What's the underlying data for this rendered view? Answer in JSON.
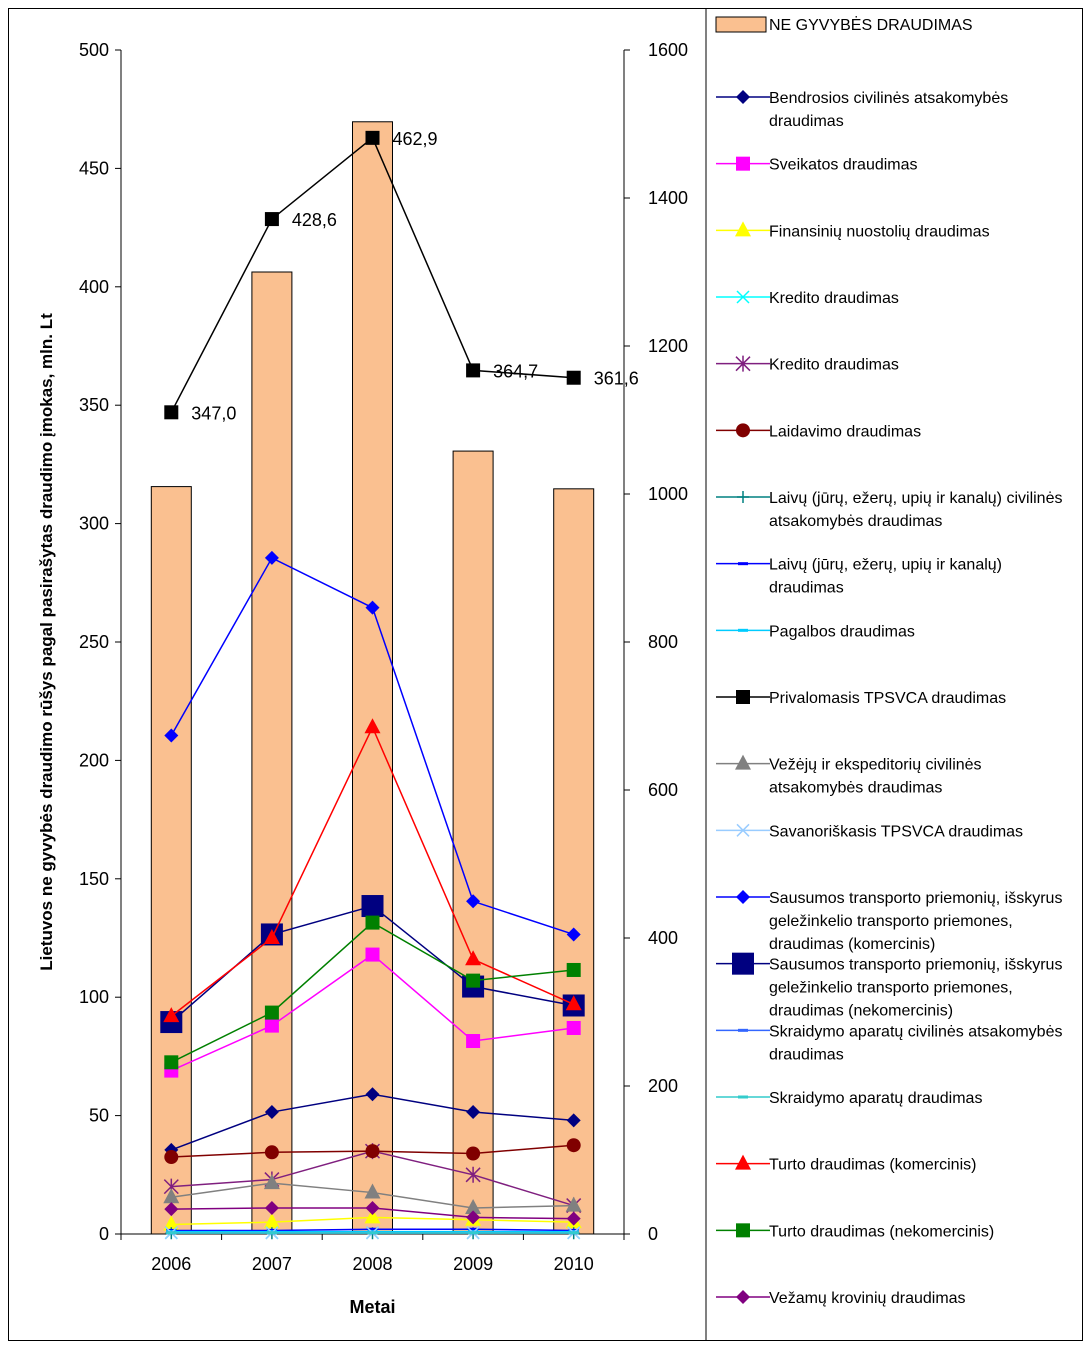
{
  "chart_data": {
    "type": "bar",
    "xlabel": "Metai",
    "ylabel": "Lietuvos ne gyvybės draudimo rūšys pagal pasirašytas draudimo įmokas, mln. Lt",
    "categories": [
      "2006",
      "2007",
      "2008",
      "2009",
      "2010"
    ],
    "ylim_left": [
      0,
      500
    ],
    "yticks_left": [
      0,
      50,
      100,
      150,
      200,
      250,
      300,
      350,
      400,
      450,
      500
    ],
    "ylim_right": [
      0,
      1600
    ],
    "yticks_right": [
      0,
      200,
      400,
      600,
      800,
      1000,
      1200,
      1400,
      1600
    ],
    "bar_series": {
      "name": "NE GYVYBĖS DRAUDIMAS",
      "axis": "right",
      "color": "#FAC090",
      "values": [
        1010,
        1300,
        1503,
        1058,
        1007
      ]
    },
    "line_series": [
      {
        "name": "Bendrosios civilinės atsakomybės draudimas",
        "color": "#000080",
        "marker": "diamond",
        "values": [
          35.5,
          51.5,
          59,
          51.5,
          48
        ]
      },
      {
        "name": "Sveikatos draudimas",
        "color": "#FF00FF",
        "marker": "square",
        "values": [
          69,
          88,
          118,
          81.5,
          87
        ]
      },
      {
        "name": "Finansinių nuostolių draudimas",
        "color": "#FFFF00",
        "marker": "triangle",
        "values": [
          4,
          5,
          7,
          6,
          5
        ]
      },
      {
        "name": "Kredito draudimas",
        "color": "#00FFFF",
        "marker": "x",
        "values": [
          0.5,
          0.5,
          0.5,
          0.5,
          0.5
        ]
      },
      {
        "name": "Kredito draudimas",
        "color": "#7F1F7F",
        "marker": "star",
        "values": [
          20,
          23,
          35,
          25,
          12
        ]
      },
      {
        "name": "Laidavimo draudimas",
        "color": "#800000",
        "marker": "circle",
        "values": [
          32.5,
          34.5,
          35,
          34,
          37.5
        ]
      },
      {
        "name": "Laivų (jūrų, ežerų, upių ir kanalų) civilinės atsakomybės draudimas",
        "color": "#008080",
        "marker": "plus",
        "values": [
          0.3,
          0.3,
          0.3,
          0.3,
          0.3
        ]
      },
      {
        "name": "Laivų (jūrų, ežerų, upių ir kanalų) draudimas",
        "color": "#0000FF",
        "marker": "dash",
        "values": [
          1.5,
          1.5,
          2,
          2,
          1.5
        ]
      },
      {
        "name": "Pagalbos draudimas",
        "color": "#00CCFF",
        "marker": "dash",
        "values": [
          1,
          1,
          1,
          1,
          1
        ]
      },
      {
        "name": "Privalomasis TPSVCA draudimas",
        "color": "#000000",
        "marker": "square",
        "values": [
          347.0,
          428.6,
          462.9,
          364.7,
          361.6
        ],
        "labels": [
          "347,0",
          "428,6",
          "462,9",
          "364,7",
          "361,6"
        ]
      },
      {
        "name": "Vežėjų ir ekspeditorių civilinės atsakomybės draudimas",
        "color": "#808080",
        "marker": "triangle",
        "values": [
          15.5,
          21.5,
          17.5,
          11,
          12
        ]
      },
      {
        "name": "Savanoriškasis TPSVCA draudimas",
        "color": "#99CCFF",
        "marker": "x",
        "values": [
          0.5,
          0.5,
          0.5,
          0.5,
          0.5
        ]
      },
      {
        "name": "Sausumos transporto priemonių, išskyrus geležinkelio transporto priemones, draudimas (komercinis)",
        "color": "#0000FF",
        "marker": "diamond",
        "values": [
          210.5,
          285.5,
          264.5,
          140.5,
          126.5
        ]
      },
      {
        "name": "Sausumos transporto priemonių, išskyrus geležinkelio transporto priemones, draudimas (nekomercinis)",
        "color": "#000080",
        "marker": "bigsquare",
        "values": [
          89.5,
          126.5,
          138.5,
          104.5,
          96.5
        ]
      },
      {
        "name": "Skraidymo aparatų civilinės atsakomybės draudimas",
        "color": "#3366FF",
        "marker": "dash",
        "values": [
          0.5,
          0.5,
          0.5,
          0.5,
          0.5
        ]
      },
      {
        "name": "Skraidymo aparatų draudimas",
        "color": "#33CCCC",
        "marker": "dash",
        "values": [
          0.5,
          0.5,
          0.5,
          0.5,
          0.5
        ]
      },
      {
        "name": "Turto draudimas (komercinis)",
        "color": "#FF0000",
        "marker": "triangle",
        "values": [
          92,
          125,
          214,
          116,
          97
        ]
      },
      {
        "name": "Turto draudimas (nekomercinis)",
        "color": "#008000",
        "marker": "square",
        "values": [
          72.5,
          93.5,
          131.5,
          107,
          111.5
        ]
      },
      {
        "name": "Vežamų krovinių draudimas",
        "color": "#800080",
        "marker": "diamond",
        "values": [
          10.5,
          11,
          11,
          7,
          6.5
        ]
      }
    ],
    "legend_position": "right",
    "grid": false
  }
}
